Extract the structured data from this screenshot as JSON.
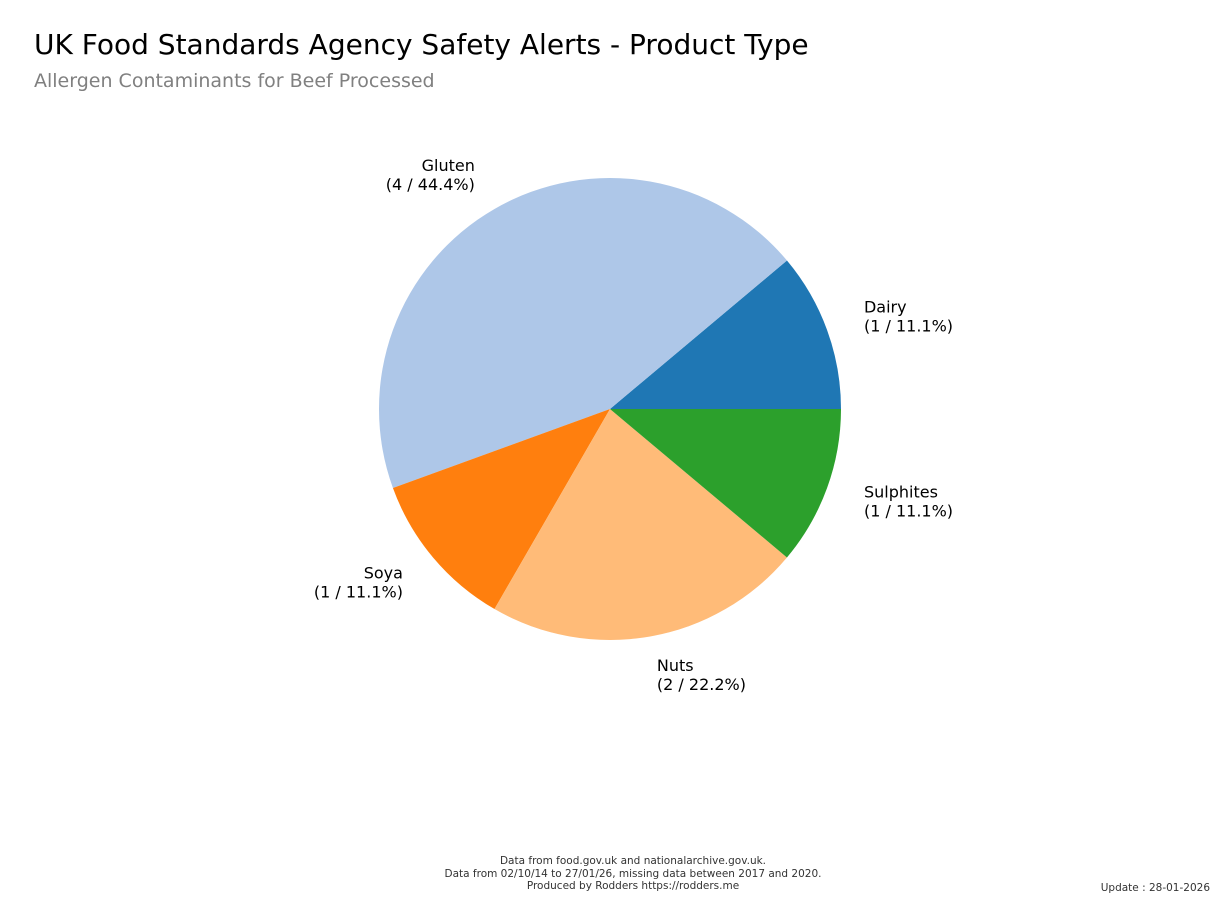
{
  "header": {
    "title": "UK Food Standards Agency Safety Alerts - Product Type",
    "subtitle": "Allergen Contaminants for Beef Processed"
  },
  "chart_data": {
    "type": "pie",
    "title": "UK Food Standards Agency Safety Alerts - Product Type",
    "subtitle": "Allergen Contaminants for Beef Processed",
    "start_angle_deg": 0,
    "direction": "counterclockwise",
    "slices": [
      {
        "label": "Dairy",
        "value": 1,
        "percent": "11.1%",
        "detail": "(1 / 11.1%)",
        "color": "#1f77b4"
      },
      {
        "label": "Gluten",
        "value": 4,
        "percent": "44.4%",
        "detail": "(4 / 44.4%)",
        "color": "#aec7e8"
      },
      {
        "label": "Soya",
        "value": 1,
        "percent": "11.1%",
        "detail": "(1 / 11.1%)",
        "color": "#ff7f0e"
      },
      {
        "label": "Nuts",
        "value": 2,
        "percent": "22.2%",
        "detail": "(2 / 22.2%)",
        "color": "#ffbb78"
      },
      {
        "label": "Sulphites",
        "value": 1,
        "percent": "11.1%",
        "detail": "(1 / 11.1%)",
        "color": "#2ca02c"
      }
    ]
  },
  "footer": {
    "line1": "Data from food.gov.uk and nationalarchive.gov.uk.",
    "line2": "Data from 02/10/14 to 27/01/26, missing data between 2017 and 2020.",
    "line3": "Produced by Rodders https://rodders.me",
    "update": "Update : 28-01-2026"
  }
}
